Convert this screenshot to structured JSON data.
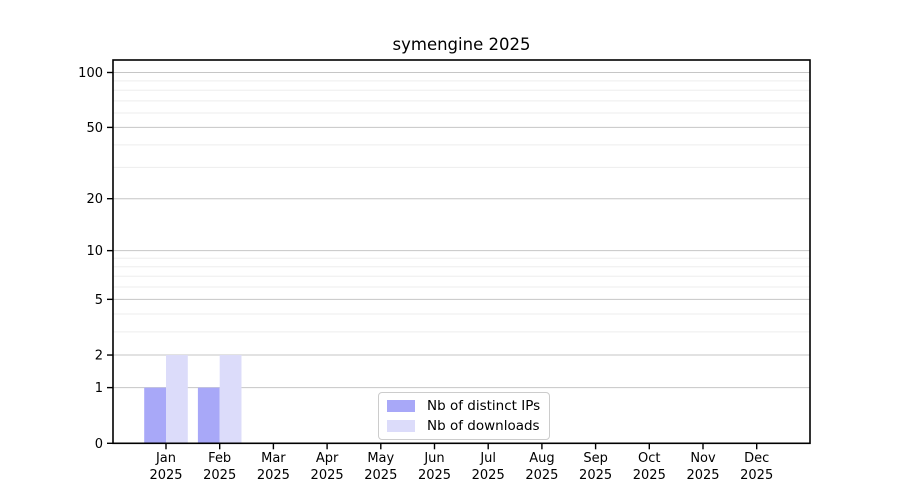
{
  "chart_data": {
    "type": "bar",
    "title": "symengine 2025",
    "categories": [
      "Jan",
      "Feb",
      "Mar",
      "Apr",
      "May",
      "Jun",
      "Jul",
      "Aug",
      "Sep",
      "Oct",
      "Nov",
      "Dec"
    ],
    "x_year_label": "2025",
    "series": [
      {
        "name": "Nb of distinct IPs",
        "color": "#a8a8f8",
        "values": [
          1,
          1,
          0,
          0,
          0,
          0,
          0,
          0,
          0,
          0,
          0,
          0
        ]
      },
      {
        "name": "Nb of downloads",
        "color": "#dcdcfa",
        "values": [
          2,
          2,
          0,
          0,
          0,
          0,
          0,
          0,
          0,
          0,
          0,
          0
        ]
      }
    ],
    "y_scale": "log1p",
    "y_ticks": [
      0,
      1,
      2,
      5,
      10,
      20,
      50,
      100
    ],
    "y_minor_ticks": [
      3,
      4,
      6,
      7,
      8,
      9,
      30,
      40,
      60,
      70,
      80,
      90
    ],
    "ylim": [
      0,
      117
    ],
    "grid": true,
    "legend_position": "lower center",
    "colors": {
      "grid_major": "#c6c6c6",
      "grid_minor": "#ededed",
      "spine": "#000000",
      "tick_text": "#000000",
      "legend_border": "#cccccc"
    }
  }
}
